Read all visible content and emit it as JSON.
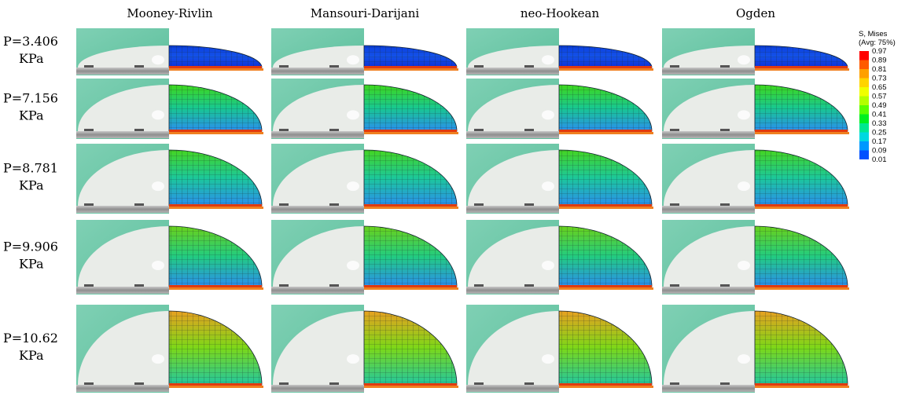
{
  "columns": [
    "Mooney-Rivlin",
    "Mansouri-Darijani",
    "neo-Hookean",
    "Ogden"
  ],
  "rows": [
    {
      "pressure": "P=3.406",
      "unit": "KPa"
    },
    {
      "pressure": "P=7.156",
      "unit": "KPa"
    },
    {
      "pressure": "P=8.781",
      "unit": "KPa"
    },
    {
      "pressure": "P=9.906",
      "unit": "KPa"
    },
    {
      "pressure": "P=10.62",
      "unit": "KPa"
    }
  ],
  "legend": {
    "title": "S, Mises",
    "subtitle": "(Avg: 75%)",
    "labels": [
      "0.97",
      "0.89",
      "0.81",
      "0.73",
      "0.65",
      "0.57",
      "0.49",
      "0.41",
      "0.33",
      "0.25",
      "0.17",
      "0.09",
      "0.01"
    ]
  }
}
